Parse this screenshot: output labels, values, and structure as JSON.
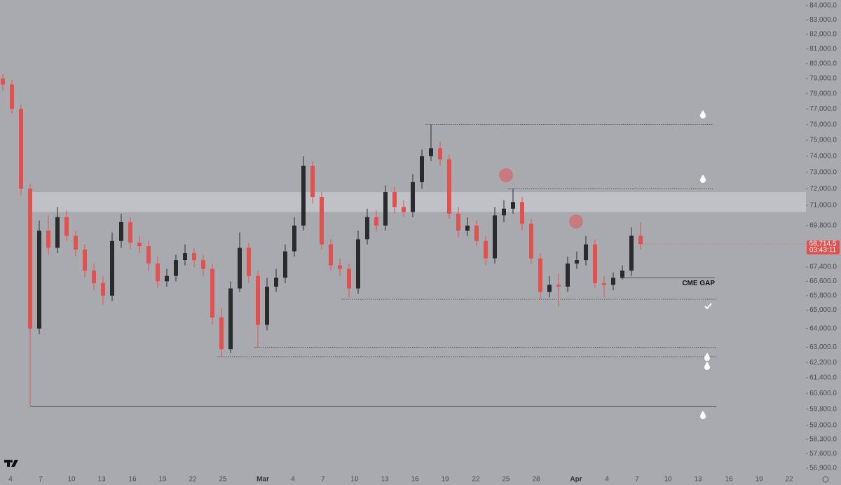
{
  "chart_data": {
    "type": "candlestick",
    "log_scale": true,
    "ylim": [
      56500,
      84400
    ],
    "yticks": [
      {
        "value": 84000,
        "label": "84,000.0"
      },
      {
        "value": 83000,
        "label": "83,000.0"
      },
      {
        "value": 82000,
        "label": "82,000.0"
      },
      {
        "value": 81000,
        "label": "81,000.0"
      },
      {
        "value": 80000,
        "label": "80,000.0"
      },
      {
        "value": 79000,
        "label": "79,000.0"
      },
      {
        "value": 78000,
        "label": "78,000.0"
      },
      {
        "value": 77000,
        "label": "77,000.0"
      },
      {
        "value": 76000,
        "label": "76,000.0"
      },
      {
        "value": 75000,
        "label": "75,000.0"
      },
      {
        "value": 74000,
        "label": "74,000.0"
      },
      {
        "value": 73000,
        "label": "73,000.0"
      },
      {
        "value": 72000,
        "label": "72,000.0"
      },
      {
        "value": 71000,
        "label": "71,000.0"
      },
      {
        "value": 69800,
        "label": "69,800.0"
      },
      {
        "value": 67400,
        "label": "67,400.0"
      },
      {
        "value": 66600,
        "label": "66,600.0"
      },
      {
        "value": 65800,
        "label": "65,800.0"
      },
      {
        "value": 65000,
        "label": "65,000.0"
      },
      {
        "value": 64000,
        "label": "64,000.0"
      },
      {
        "value": 63000,
        "label": "63,000.0"
      },
      {
        "value": 62200,
        "label": "62,200.0"
      },
      {
        "value": 61400,
        "label": "61,400.0"
      },
      {
        "value": 60600,
        "label": "60,600.0"
      },
      {
        "value": 59800,
        "label": "59,800.0"
      },
      {
        "value": 59000,
        "label": "59,000.0"
      },
      {
        "value": 58300,
        "label": "58,300.0"
      },
      {
        "value": 57600,
        "label": "57,600.0"
      },
      {
        "value": 56900,
        "label": "56,900.0"
      }
    ],
    "x_tick_labels": [
      "4",
      "7",
      "10",
      "13",
      "16",
      "19",
      "22",
      "25",
      "Mar",
      "4",
      "7",
      "10",
      "13",
      "16",
      "19",
      "22",
      "25",
      "28",
      "Apr",
      "4",
      "7",
      "10",
      "13",
      "16",
      "19",
      "22"
    ],
    "up_color": "#2b2b2e",
    "down_color": "#e0514f",
    "open": [
      79000,
      78600,
      77000,
      72000,
      64000,
      69500,
      68500,
      70300,
      69200,
      68400,
      67200,
      66500,
      65800,
      68900,
      70000,
      68800,
      68600,
      67600,
      66600,
      66900,
      67800,
      68200,
      67800,
      67300,
      64600,
      62900,
      66200,
      68500,
      66900,
      64200,
      66300,
      66800,
      68300,
      69800,
      73400,
      71500,
      68700,
      67500,
      67300,
      66200,
      69000,
      70300,
      69800,
      71800,
      70900,
      70600,
      72400,
      74000,
      74500,
      73800,
      70500,
      69500,
      69800,
      68900,
      67900,
      70400,
      70800,
      71200,
      69900,
      67900,
      66000,
      66400,
      66300,
      67600,
      67800,
      68700,
      66500,
      66400,
      66800,
      67200,
      69200
    ],
    "high": [
      79300,
      78900,
      77300,
      72300,
      70100,
      70400,
      70900,
      70700,
      69500,
      68700,
      67600,
      66900,
      69400,
      70500,
      70300,
      69200,
      68900,
      68000,
      67300,
      68100,
      68700,
      68500,
      68100,
      67600,
      65100,
      66600,
      69400,
      68800,
      67200,
      66800,
      67300,
      68700,
      70300,
      74000,
      73700,
      71800,
      69000,
      67900,
      67600,
      69500,
      70800,
      70700,
      72200,
      72100,
      71300,
      72900,
      74400,
      76000,
      74900,
      74100,
      70900,
      70300,
      70100,
      69200,
      70900,
      71300,
      72000,
      71500,
      70200,
      68200,
      66900,
      67000,
      68000,
      68300,
      69200,
      69000,
      66900,
      67100,
      67500,
      69700,
      70000
    ],
    "low": [
      78200,
      76700,
      71600,
      60000,
      63700,
      68100,
      68200,
      68900,
      68000,
      66800,
      66100,
      65300,
      65500,
      68500,
      68400,
      68200,
      67200,
      66200,
      66300,
      66600,
      67500,
      67400,
      66900,
      64200,
      62500,
      62700,
      66000,
      66500,
      63000,
      63900,
      66000,
      66500,
      68000,
      69500,
      71100,
      68400,
      67200,
      66900,
      65700,
      65900,
      68700,
      69400,
      69500,
      70500,
      70300,
      70300,
      72000,
      73700,
      73400,
      70200,
      69100,
      69200,
      68600,
      67500,
      67600,
      70000,
      70500,
      69500,
      67600,
      65600,
      65700,
      65200,
      66000,
      67300,
      67500,
      66200,
      65700,
      66100,
      66700,
      66900,
      68400
    ],
    "close": [
      78600,
      77000,
      72000,
      64000,
      69500,
      68500,
      70300,
      69200,
      68400,
      67200,
      66500,
      65800,
      68900,
      70000,
      68800,
      68600,
      67600,
      66600,
      66900,
      67800,
      68200,
      67800,
      67300,
      64600,
      62900,
      66200,
      68500,
      66900,
      64200,
      66300,
      66800,
      68300,
      69800,
      73400,
      71500,
      68700,
      67500,
      67300,
      66200,
      69000,
      70300,
      69800,
      71800,
      70900,
      70600,
      72400,
      74000,
      74500,
      73800,
      70500,
      69500,
      69800,
      68900,
      67900,
      70400,
      70800,
      71200,
      69900,
      67900,
      66000,
      66400,
      66300,
      67600,
      67800,
      68700,
      66500,
      66400,
      66800,
      67200,
      69200,
      68714.5
    ],
    "zone": [
      71800,
      70600
    ],
    "levels": [
      {
        "value": 76000
      },
      {
        "value": 72000
      },
      {
        "value": 66800,
        "label": "CME GAP"
      },
      {
        "value": 65600
      },
      {
        "value": 63000
      },
      {
        "value": 62500
      },
      {
        "value": 59950
      }
    ],
    "last_price": {
      "value": 68714.5,
      "label": "68,714.5"
    },
    "countdown": "03:43:11"
  }
}
